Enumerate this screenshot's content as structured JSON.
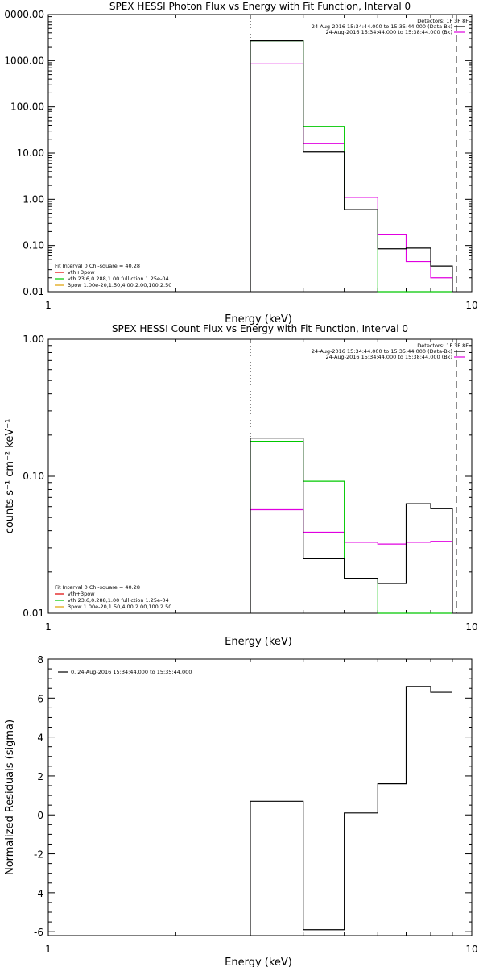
{
  "colors": {
    "black": "#000000",
    "magenta": "#e000e0",
    "green": "#00c800",
    "orange": "#e0a000",
    "red": "#e00000"
  },
  "chart_data": [
    {
      "type": "line",
      "step": true,
      "title": "SPEX HESSI Photon Flux vs Energy with Fit Function, Interval 0",
      "xlabel": "Energy (keV)",
      "ylabel": "",
      "xscale": "log",
      "yscale": "log",
      "xlim": [
        1,
        10
      ],
      "ylim": [
        0.01,
        10000
      ],
      "x_ticks": [
        "1",
        "10"
      ],
      "y_ticks": [
        "0.01",
        "0.10",
        "1.00",
        "10.00",
        "100.00",
        "1000.00",
        "0000.00"
      ],
      "bin_edges": [
        3,
        4,
        5,
        6,
        7,
        8,
        9
      ],
      "series": [
        {
          "color": "black",
          "values": [
            2700,
            10.5,
            0.6,
            0.085,
            0.088,
            0.036
          ]
        },
        {
          "color": "green",
          "values": [
            2700,
            38,
            0.6,
            0.01,
            0.01,
            0.01
          ]
        },
        {
          "color": "magenta",
          "values": [
            850,
            16,
            1.1,
            0.17,
            0.045,
            0.02
          ]
        }
      ],
      "vlines": [
        {
          "x": 3,
          "style": "dotted"
        },
        {
          "x": 9.2,
          "style": "dashed"
        }
      ],
      "legend_top": {
        "label": "Detectors: 1F 3F 8F",
        "lines": [
          {
            "text": "24-Aug-2016 15:34:44.000 to 15:35:44.000 (Data-Bk)",
            "color": "black"
          },
          {
            "text": "24-Aug-2016 15:34:44.000 to 15:38:44.000 (Bk)",
            "color": "magenta"
          }
        ]
      },
      "legend_fit": [
        {
          "text": "Fit Interval 0   Chi-square = 40.28",
          "color": "black"
        },
        {
          "text": "vth+3pow",
          "color": "red"
        },
        {
          "text": "vth 23.6,0.288,1.00  full ction 1.25e-04",
          "color": "green"
        },
        {
          "text": "3pow 1.00e-20,1.50,4.00,2.00,100,2.50",
          "color": "orange"
        }
      ]
    },
    {
      "type": "line",
      "step": true,
      "title": "SPEX HESSI Count Flux vs Energy with Fit Function, Interval 0",
      "xlabel": "Energy (keV)",
      "ylabel": "counts s⁻¹ cm⁻² keV⁻¹",
      "xscale": "log",
      "yscale": "log",
      "xlim": [
        1,
        10
      ],
      "ylim": [
        0.01,
        1
      ],
      "x_ticks": [
        "1",
        "10"
      ],
      "y_ticks": [
        "0.01",
        "0.10",
        "1.00"
      ],
      "bin_edges": [
        3,
        4,
        5,
        6,
        7,
        8,
        9
      ],
      "series": [
        {
          "color": "black",
          "values": [
            0.19,
            0.025,
            0.018,
            0.0165,
            0.063,
            0.058
          ]
        },
        {
          "color": "green",
          "values": [
            0.18,
            0.092,
            0.0178,
            0.01,
            0.01,
            0.01
          ]
        },
        {
          "color": "magenta",
          "values": [
            0.057,
            0.039,
            0.033,
            0.032,
            0.033,
            0.0335
          ]
        }
      ],
      "vlines": [
        {
          "x": 3,
          "style": "dotted"
        },
        {
          "x": 9.2,
          "style": "dashed"
        }
      ],
      "legend_top": {
        "label": "Detectors: 1F 3F 8F",
        "lines": [
          {
            "text": "24-Aug-2016 15:34:44.000 to 15:35:44.000 (Data-Bk)",
            "color": "black"
          },
          {
            "text": "24-Aug-2016 15:34:44.000 to 15:38:44.000 (Bk)",
            "color": "magenta"
          }
        ]
      },
      "legend_fit": [
        {
          "text": "Fit Interval 0   Chi-square = 40.28",
          "color": "black"
        },
        {
          "text": "vth+3pow",
          "color": "red"
        },
        {
          "text": "vth 23.6,0.288,1.00  full ction 1.25e-04",
          "color": "green"
        },
        {
          "text": "3pow 1.00e-20,1.50,4.00,2.00,100,2.50",
          "color": "orange"
        }
      ]
    },
    {
      "type": "line",
      "step": true,
      "title": "",
      "xlabel": "Energy (keV)",
      "ylabel": "Normalized Residuals (sigma)",
      "xscale": "log",
      "yscale": "linear",
      "xlim": [
        1,
        10
      ],
      "ylim": [
        -6.2,
        8
      ],
      "x_ticks": [
        "1",
        "10"
      ],
      "y_ticks": [
        "-6",
        "-4",
        "-2",
        "0",
        "2",
        "4",
        "6",
        "8"
      ],
      "bin_edges": [
        3,
        4,
        5,
        6,
        7,
        8,
        9
      ],
      "series": [
        {
          "color": "black",
          "values": [
            0.7,
            -5.9,
            0.1,
            1.6,
            6.6,
            6.3
          ]
        }
      ],
      "legend": {
        "text": "0. 24-Aug-2016 15:34:44.000 to 15:35:44.000",
        "color": "black"
      }
    }
  ]
}
